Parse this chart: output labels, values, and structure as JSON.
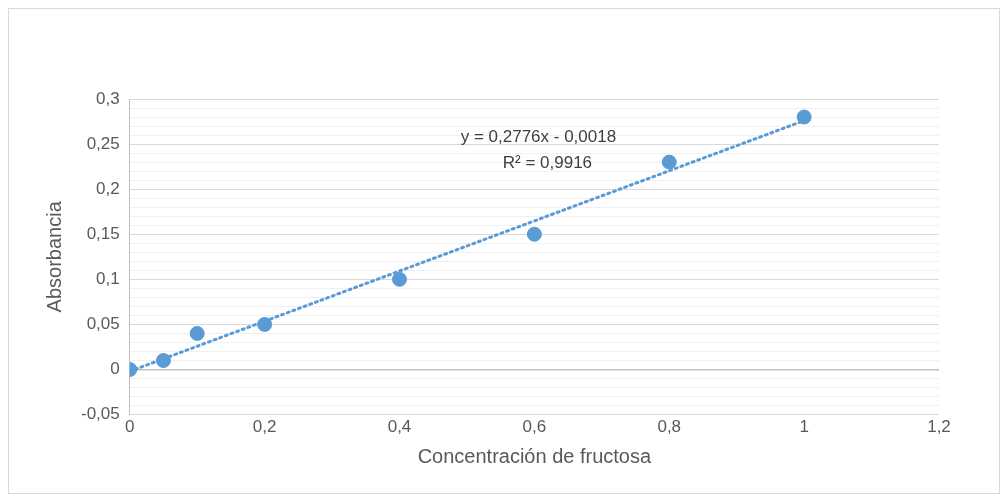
{
  "chart_data": {
    "type": "scatter",
    "xlabel": "Concentración de fructosa",
    "ylabel": "Absorbancia",
    "series": [
      {
        "color": "#5b9bd5",
        "x": [
          0,
          0.05,
          0.1,
          0.2,
          0.4,
          0.6,
          0.8,
          1
        ],
        "values": [
          0,
          0.01,
          0.04,
          0.05,
          0.1,
          0.15,
          0.23,
          0.28
        ]
      },
      {
        "type": "line",
        "color": "#5b9bd5",
        "line_style": "dotted",
        "marker": "none",
        "x": [
          0,
          1
        ],
        "values": [
          -0.002,
          0.276
        ]
      }
    ],
    "xlim": [
      0,
      1.2
    ],
    "xticks": [
      0,
      {
        "value": 0.2,
        "label": "0,2"
      },
      {
        "value": 0.4,
        "label": "0,4"
      },
      {
        "value": 0.6,
        "label": "0,6"
      },
      {
        "value": 0.8,
        "label": "0,8"
      },
      1,
      {
        "value": 1.2,
        "label": "1,2"
      }
    ],
    "ylim": [
      -0.05,
      0.3
    ],
    "yticks": [
      {
        "value": -0.05,
        "label": "-0,05"
      },
      {
        "value": -0.04,
        "label": null
      },
      {
        "value": -0.03,
        "label": null
      },
      {
        "value": -0.02,
        "label": null
      },
      {
        "value": -0.01,
        "label": null
      },
      0,
      {
        "value": 0.01,
        "label": null
      },
      {
        "value": 0.02,
        "label": null
      },
      {
        "value": 0.03,
        "label": null
      },
      {
        "value": 0.04,
        "label": null
      },
      {
        "value": 0.05,
        "label": "0,05"
      },
      {
        "value": 0.06,
        "label": null
      },
      {
        "value": 0.07,
        "label": null
      },
      {
        "value": 0.08,
        "label": null
      },
      {
        "value": 0.09,
        "label": null
      },
      {
        "value": 0.1,
        "label": "0,1"
      },
      {
        "value": 0.11,
        "label": null
      },
      {
        "value": 0.12,
        "label": null
      },
      {
        "value": 0.13,
        "label": null
      },
      {
        "value": 0.14,
        "label": null
      },
      {
        "value": 0.15,
        "label": "0,15"
      },
      {
        "value": 0.16,
        "label": null
      },
      {
        "value": 0.17,
        "label": null
      },
      {
        "value": 0.18,
        "label": null
      },
      {
        "value": 0.19,
        "label": null
      },
      {
        "value": 0.2,
        "label": "0,2"
      },
      {
        "value": 0.21,
        "label": null
      },
      {
        "value": 0.22,
        "label": null
      },
      {
        "value": 0.23,
        "label": null
      },
      {
        "value": 0.24,
        "label": null
      },
      {
        "value": 0.25,
        "label": "0,25"
      },
      {
        "value": 0.26,
        "label": null
      },
      {
        "value": 0.27,
        "label": null
      },
      {
        "value": 0.28,
        "label": null
      },
      {
        "value": 0.29,
        "label": null
      },
      {
        "value": 0.3,
        "label": "0,3"
      }
    ],
    "grid": "y",
    "legend": false,
    "marker": "circle",
    "annotations": [
      "y = 0,2776x - 0,0018",
      "R² = 0,9916"
    ]
  }
}
